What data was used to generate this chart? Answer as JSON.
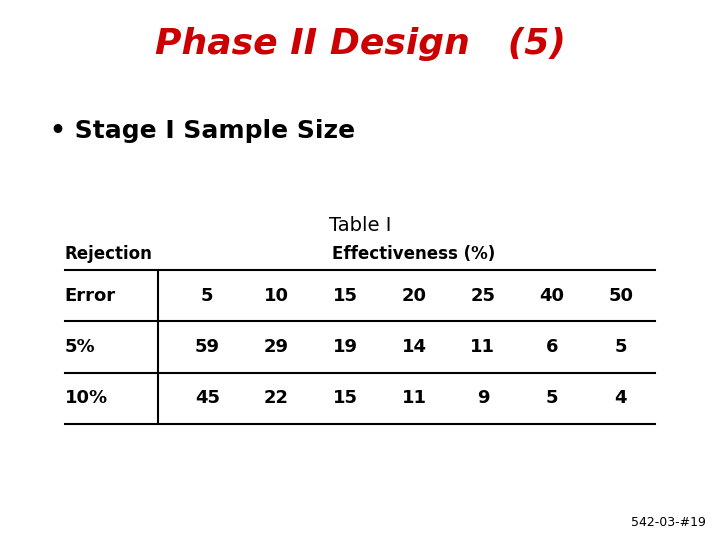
{
  "title": "Phase II Design   (5)",
  "bullet": "Stage I Sample Size",
  "table_title": "Table I",
  "col_header_left": "Rejection",
  "col_header_right": "Effectiveness (%)",
  "row_labels": [
    "Error",
    "5%",
    "10%"
  ],
  "col_values": [
    5,
    10,
    15,
    20,
    25,
    40,
    50
  ],
  "data_rows": [
    [
      5,
      10,
      15,
      20,
      25,
      40,
      50
    ],
    [
      59,
      29,
      19,
      14,
      11,
      6,
      5
    ],
    [
      45,
      22,
      15,
      11,
      9,
      5,
      4
    ]
  ],
  "title_color": "#CC0000",
  "bullet_color": "#000000",
  "bg_color": "#FFFFFF",
  "text_color": "#000000",
  "footer": "542-03-#19"
}
